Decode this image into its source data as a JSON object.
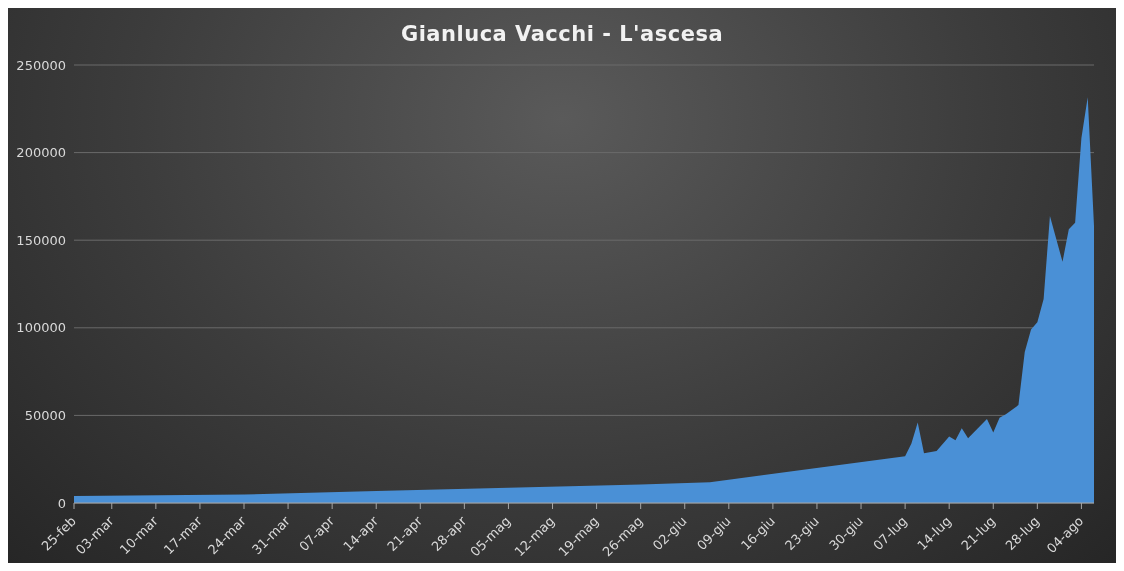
{
  "chart_data": {
    "type": "area",
    "title": "Gianluca Vacchi - L'ascesa",
    "x": [
      "--02-25",
      "--03-24",
      "--04-14",
      "--05-05",
      "--05-26",
      "--06-06",
      "--07-07",
      "--07-08",
      "--07-09",
      "--07-10",
      "--07-12",
      "--07-14",
      "--07-15",
      "--07-16",
      "--07-17",
      "--07-20",
      "--07-21",
      "--07-22",
      "--07-23",
      "--07-25",
      "--07-26",
      "--07-27",
      "--07-28",
      "--07-29",
      "--07-30",
      "--08-01",
      "--08-02",
      "--08-03",
      "--08-04",
      "--08-05",
      "--08-06"
    ],
    "series": [
      {
        "color": "#4a90d6",
        "values": [
          4000,
          4800,
          6800,
          8700,
          10600,
          11900,
          26700,
          34000,
          46000,
          28400,
          29700,
          37900,
          35800,
          42600,
          36900,
          47900,
          40300,
          48700,
          50600,
          55900,
          86200,
          99000,
          103200,
          116500,
          163800,
          137700,
          156300,
          160000,
          208300,
          231600,
          158100
        ]
      }
    ],
    "xlim": [
      "--02-25",
      "--08-06"
    ],
    "xticks": [
      {
        "value": "--02-25",
        "label": "25-feb"
      },
      {
        "value": "--03-03",
        "label": "03-mar"
      },
      {
        "value": "--03-10",
        "label": "10-mar"
      },
      {
        "value": "--03-17",
        "label": "17-mar"
      },
      {
        "value": "--03-24",
        "label": "24-mar"
      },
      {
        "value": "--03-31",
        "label": "31-mar"
      },
      {
        "value": "--04-07",
        "label": "07-apr"
      },
      {
        "value": "--04-14",
        "label": "14-apr"
      },
      {
        "value": "--04-21",
        "label": "21-apr"
      },
      {
        "value": "--04-28",
        "label": "28-apr"
      },
      {
        "value": "--05-05",
        "label": "05-mag"
      },
      {
        "value": "--05-12",
        "label": "12-mag"
      },
      {
        "value": "--05-19",
        "label": "19-mag"
      },
      {
        "value": "--05-26",
        "label": "26-mag"
      },
      {
        "value": "--06-02",
        "label": "02-giu"
      },
      {
        "value": "--06-09",
        "label": "09-giu"
      },
      {
        "value": "--06-16",
        "label": "16-giu"
      },
      {
        "value": "--06-23",
        "label": "23-giu"
      },
      {
        "value": "--06-30",
        "label": "30-giu"
      },
      {
        "value": "--07-07",
        "label": "07-lug"
      },
      {
        "value": "--07-14",
        "label": "14-lug"
      },
      {
        "value": "--07-21",
        "label": "21-lug"
      },
      {
        "value": "--07-28",
        "label": "28-lug"
      },
      {
        "value": "--08-04",
        "label": "04-ago"
      }
    ],
    "ylim": [
      0,
      250000
    ],
    "yticks": [
      0,
      50000,
      100000,
      150000,
      200000,
      250000
    ],
    "grid": "y",
    "legend": false
  }
}
